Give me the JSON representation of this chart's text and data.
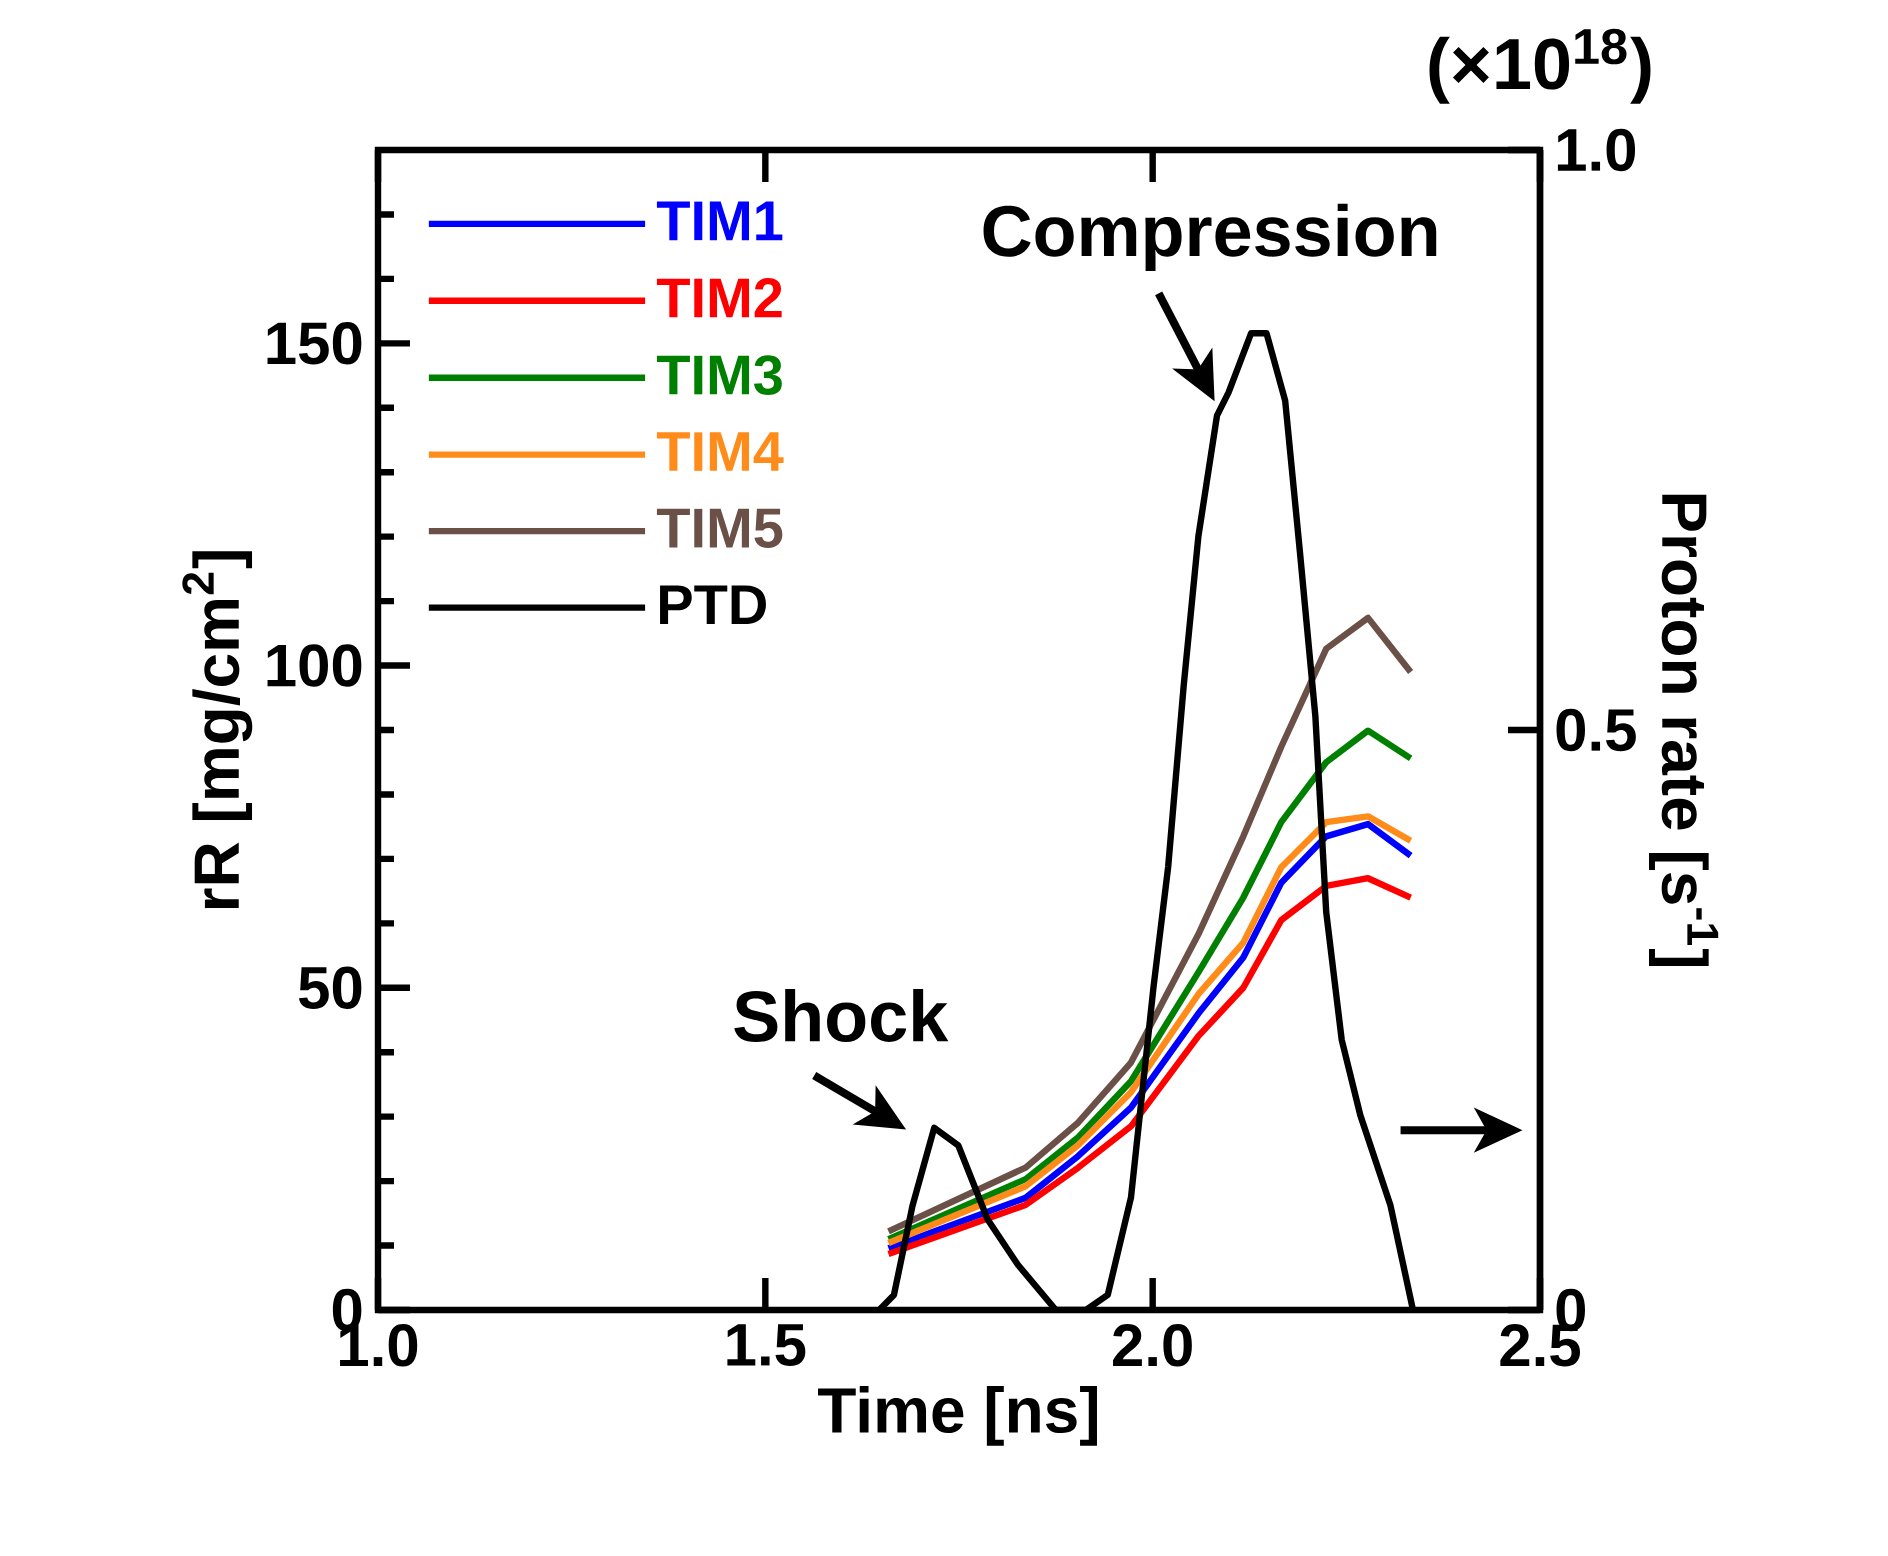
{
  "chart_data": {
    "type": "line",
    "xlabel": "Time [ns]",
    "ylabel": "rR [mg/cm$^{2}$]",
    "y2label": "Proton rate [s$^{-1}$]",
    "x": [
      1.659,
      1.836,
      1.904,
      1.972,
      2.059,
      2.117,
      2.166,
      2.224,
      2.278,
      2.333
    ],
    "series": [
      {
        "name": "TIM1",
        "color": "#0000ff",
        "values": [
          9.6,
          17.4,
          23.9,
          31.4,
          46.0,
          54.7,
          66.3,
          73.5,
          75.4,
          70.5
        ]
      },
      {
        "name": "TIM2",
        "color": "#ff0000",
        "values": [
          8.7,
          16.3,
          22.1,
          28.5,
          42.5,
          50.0,
          60.5,
          65.8,
          67.0,
          64.0
        ]
      },
      {
        "name": "TIM3",
        "color": "#008000",
        "values": [
          11.0,
          20.3,
          26.8,
          35.5,
          52.4,
          64.0,
          75.7,
          85.0,
          89.9,
          85.6
        ]
      },
      {
        "name": "TIM4",
        "color": "#ff8c1a",
        "values": [
          10.4,
          19.2,
          25.6,
          33.8,
          49.0,
          57.0,
          68.7,
          75.7,
          76.6,
          72.8
        ]
      },
      {
        "name": "TIM5",
        "color": "#6b5047",
        "values": [
          12.2,
          22.1,
          29.1,
          38.4,
          58.3,
          73.5,
          87.4,
          102.6,
          107.4,
          99.0
        ]
      },
      {
        "name": "PTD",
        "color": "#000000",
        "axis": "y2",
        "x": [
          1.647,
          1.666,
          1.69,
          1.718,
          1.749,
          1.787,
          1.826,
          1.875,
          1.914,
          1.942,
          1.972,
          2.001,
          2.02,
          2.04,
          2.059,
          2.083,
          2.098,
          2.127,
          2.147,
          2.171,
          2.19,
          2.21,
          2.224,
          2.244,
          2.268,
          2.307,
          2.336
        ],
        "values": [
          0,
          0.013,
          0.09,
          0.157,
          0.142,
          0.078,
          0.039,
          0,
          0,
          0.013,
          0.097,
          0.278,
          0.382,
          0.538,
          0.667,
          0.771,
          0.791,
          0.842,
          0.842,
          0.784,
          0.654,
          0.512,
          0.343,
          0.233,
          0.168,
          0.09,
          0
        ]
      }
    ],
    "xlim": [
      1.0,
      2.5
    ],
    "ylim": [
      0,
      180
    ],
    "y2lim": [
      0,
      1
    ],
    "xticks": [
      {
        "value": 1,
        "label": "1.0"
      },
      {
        "value": 1.5,
        "label": "1.5"
      },
      {
        "value": 2,
        "label": "2.0"
      },
      {
        "value": 2.5,
        "label": "2.5"
      }
    ],
    "yticks": [
      0,
      {
        "value": 10,
        "label": null
      },
      {
        "value": 20,
        "label": null
      },
      {
        "value": 30,
        "label": null
      },
      {
        "value": 40,
        "label": null
      },
      50,
      {
        "value": 60,
        "label": null
      },
      {
        "value": 70,
        "label": null
      },
      {
        "value": 80,
        "label": null
      },
      {
        "value": 90,
        "label": null
      },
      100,
      {
        "value": 110,
        "label": null
      },
      {
        "value": 120,
        "label": null
      },
      {
        "value": 130,
        "label": null
      },
      {
        "value": 140,
        "label": null
      },
      150,
      {
        "value": 160,
        "label": null
      },
      {
        "value": 170,
        "label": null
      }
    ],
    "y2ticks": [
      0,
      0.5,
      {
        "value": 1,
        "label": "1.0"
      }
    ],
    "legend": "top left",
    "annotations": [
      {
        "text": "Shock",
        "x": 1.718,
        "y": 28
      },
      {
        "text": "Compression",
        "x": 2.08,
        "y": 141
      },
      "(×10$^{18}$)"
    ]
  }
}
